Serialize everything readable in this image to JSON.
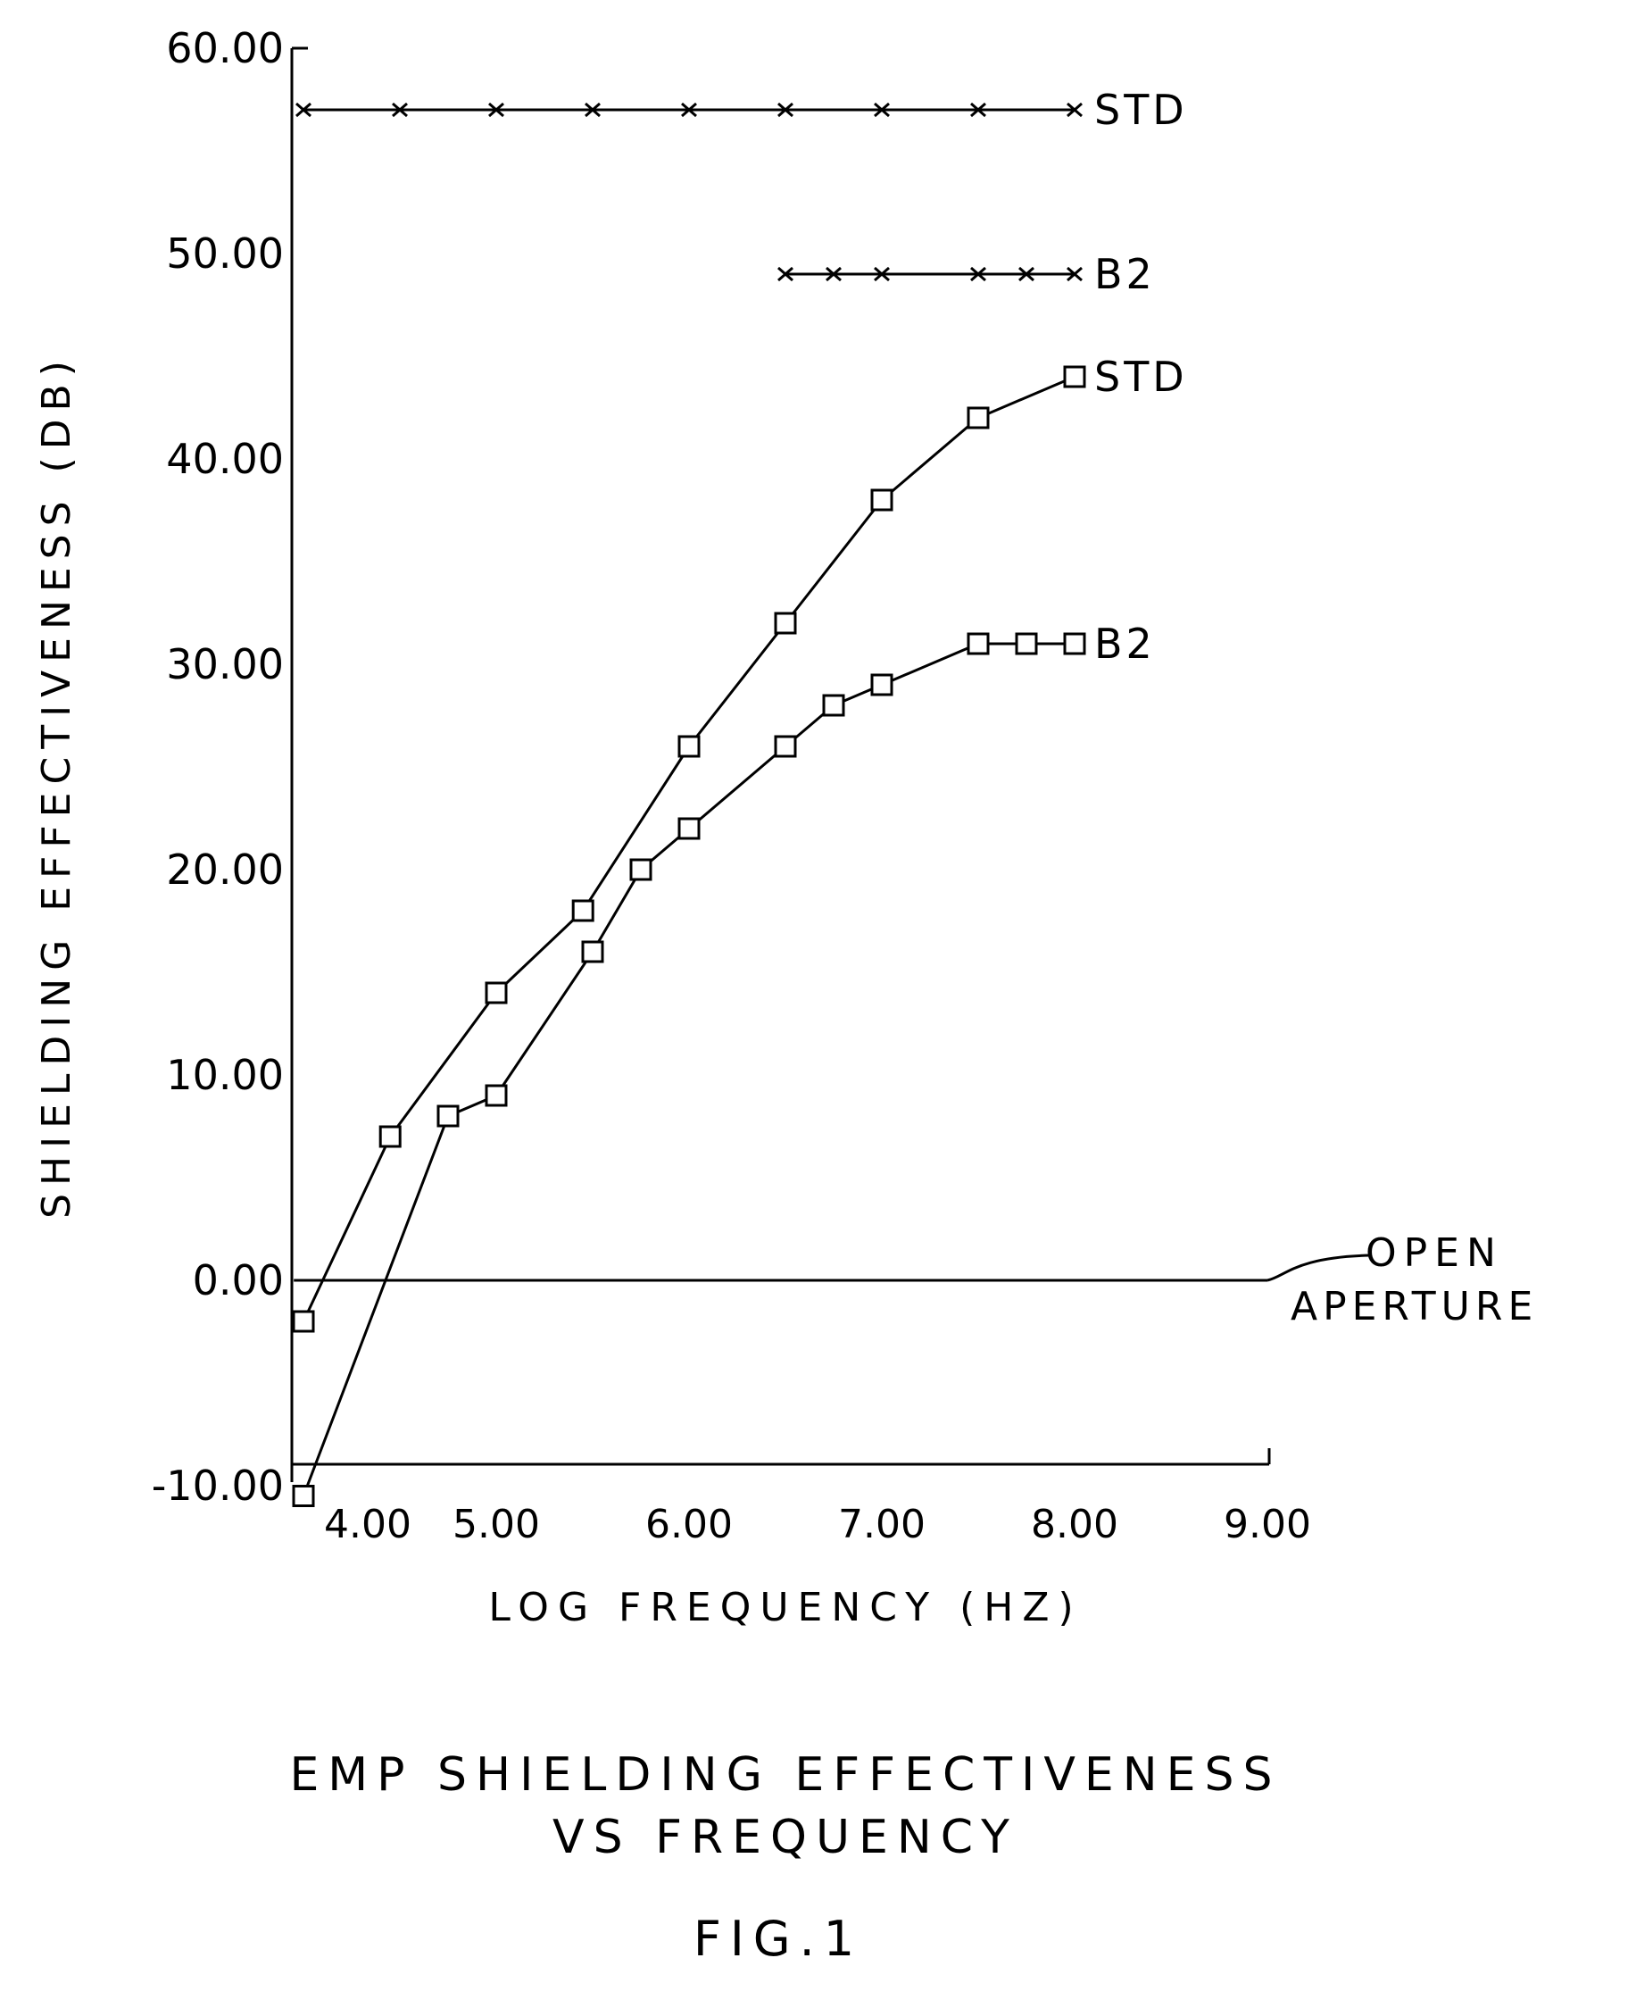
{
  "chart_data": {
    "type": "line",
    "title": "EMP SHIELDING EFFECTIVENESS",
    "title_line2": "VS FREQUENCY",
    "figure_label": "FIG.1",
    "xlabel": "LOG FREQUENCY (HZ)",
    "ylabel": "SHIELDING EFFECTIVENESS (DB)",
    "xlim": [
      3.95,
      9.0
    ],
    "ylim": [
      -10,
      60
    ],
    "grid": false,
    "xticks": [
      "4.00",
      "5.00",
      "6.00",
      "7.00",
      "8.00",
      "9.00"
    ],
    "yticks": [
      "60.00",
      "50.00",
      "40.00",
      "30.00",
      "20.00",
      "10.00",
      "0.00",
      "-10.00"
    ],
    "series": [
      {
        "name": "STD",
        "marker": "x",
        "x": [
          4.0,
          4.5,
          5.0,
          5.5,
          6.0,
          6.5,
          7.0,
          7.5,
          8.0
        ],
        "y": [
          57,
          57,
          57,
          57,
          57,
          57,
          57,
          57,
          57
        ]
      },
      {
        "name": "B2",
        "marker": "x",
        "x": [
          6.5,
          6.75,
          7.0,
          7.5,
          7.75,
          8.0
        ],
        "y": [
          49,
          49,
          49,
          49,
          49,
          49
        ]
      },
      {
        "name": "STD",
        "marker": "square",
        "x": [
          4.0,
          4.45,
          5.0,
          5.45,
          6.0,
          6.5,
          7.0,
          7.5,
          8.0
        ],
        "y": [
          -2,
          7,
          14,
          18,
          26,
          32,
          38,
          42,
          44
        ]
      },
      {
        "name": "B2",
        "marker": "square",
        "x": [
          4.0,
          4.75,
          5.0,
          5.5,
          5.75,
          6.0,
          6.5,
          6.75,
          7.0,
          7.5,
          7.75,
          8.0
        ],
        "y": [
          -10.5,
          8,
          9,
          16,
          20,
          22,
          26,
          28,
          29,
          31,
          31,
          31
        ]
      },
      {
        "name": "OPEN APERTURE",
        "marker": "none",
        "x": [
          3.95,
          9.0
        ],
        "y": [
          0,
          0
        ]
      }
    ],
    "annotations": {
      "open_line1": "OPEN",
      "open_line2": "APERTURE"
    }
  }
}
